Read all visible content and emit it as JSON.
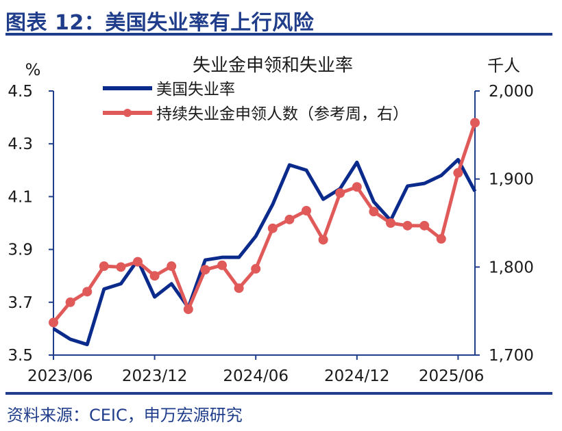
{
  "header": {
    "title": "图表 12：美国失业率有上行风险"
  },
  "source": "资料来源：CEIC，申万宏源研究",
  "colors": {
    "unemployment": "#0a2a8c",
    "claims": "#e05a5a",
    "axis": "#1f3d8a",
    "text": "#1a1a1a"
  },
  "chart_data": {
    "type": "line",
    "title": "失业金申领和失业率",
    "left_axis": {
      "unit": "%",
      "ylim": [
        3.5,
        4.5
      ],
      "ticks": [
        "3.5",
        "3.7",
        "3.9",
        "4.1",
        "4.3",
        "4.5"
      ]
    },
    "right_axis": {
      "unit": "千人",
      "ylim": [
        1700,
        2000
      ],
      "ticks": [
        "1,700",
        "1,800",
        "1,900",
        "2,000"
      ]
    },
    "x_tick_labels": [
      "2023/06",
      "2023/12",
      "2024/06",
      "2024/12",
      "2025/06"
    ],
    "series": [
      {
        "name": "美国失业率",
        "axis": "left",
        "values": [
          3.6,
          3.56,
          3.54,
          3.75,
          3.77,
          3.86,
          3.72,
          3.77,
          3.68,
          3.86,
          3.87,
          3.87,
          3.95,
          4.07,
          4.22,
          4.2,
          4.09,
          4.13,
          4.23,
          4.08,
          4.01,
          4.14,
          4.15,
          4.18,
          4.24,
          4.12
        ]
      },
      {
        "name": "持续失业金申领人数（参考周，右）",
        "axis": "right",
        "values": [
          1737,
          1760,
          1772,
          1801,
          1800,
          1806,
          1790,
          1801,
          1752,
          1797,
          1802,
          1776,
          1798,
          1844,
          1854,
          1864,
          1831,
          1884,
          1891,
          1863,
          1850,
          1847,
          1847,
          1832,
          1907,
          1964
        ]
      }
    ]
  }
}
